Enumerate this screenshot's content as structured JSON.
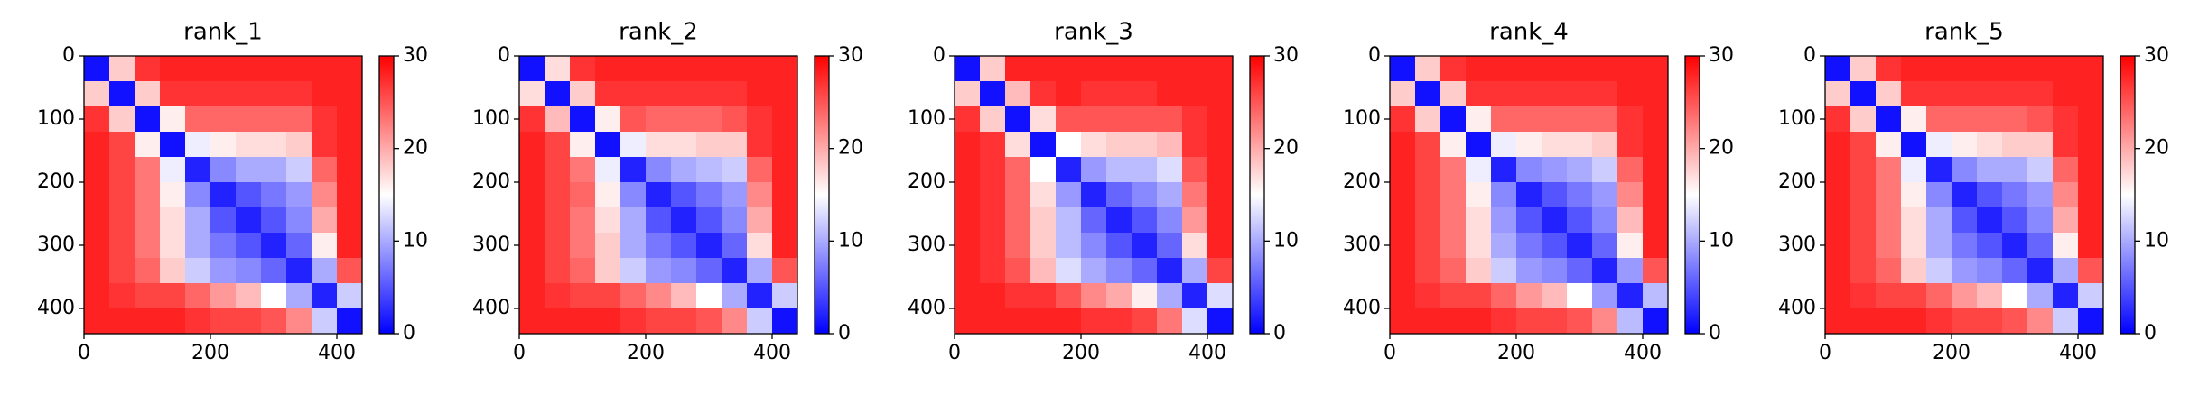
{
  "chart_data": [
    {
      "type": "heatmap",
      "title": "rank_1",
      "xlim": [
        0,
        440
      ],
      "ylim": [
        440,
        0
      ],
      "xticks": [
        0,
        200,
        400
      ],
      "yticks": [
        0,
        100,
        200,
        300,
        400
      ],
      "clim": [
        0,
        30
      ],
      "cticks": [
        0,
        10,
        20,
        30
      ],
      "colors": [
        "#0000ff",
        "#ffffff",
        "#ff0000"
      ],
      "values": [
        [
          1,
          18,
          27,
          28,
          28,
          28,
          28,
          28,
          28,
          28,
          28
        ],
        [
          18,
          1,
          18,
          27,
          27,
          27,
          27,
          27,
          27,
          28,
          28
        ],
        [
          27,
          18,
          1,
          16,
          24,
          24,
          24,
          24,
          24,
          27,
          28
        ],
        [
          28,
          26,
          16,
          1,
          14,
          16,
          17,
          17,
          18,
          27,
          28
        ],
        [
          28,
          26,
          23,
          14,
          2,
          8,
          10,
          10,
          12,
          24,
          28
        ],
        [
          28,
          26,
          23,
          16,
          8,
          2,
          5,
          7,
          9,
          22,
          28
        ],
        [
          28,
          26,
          23,
          17,
          10,
          5,
          2,
          5,
          8,
          20,
          28
        ],
        [
          28,
          26,
          23,
          17,
          10,
          7,
          5,
          2,
          6,
          16,
          28
        ],
        [
          28,
          26,
          24,
          18,
          12,
          9,
          8,
          6,
          2,
          10,
          25
        ],
        [
          28,
          27,
          26,
          26,
          24,
          21,
          19,
          15,
          10,
          2,
          12
        ],
        [
          28,
          28,
          28,
          28,
          27,
          26,
          26,
          25,
          22,
          12,
          1
        ]
      ]
    },
    {
      "type": "heatmap",
      "title": "rank_2",
      "xlim": [
        0,
        440
      ],
      "ylim": [
        440,
        0
      ],
      "xticks": [
        0,
        200,
        400
      ],
      "yticks": [
        0,
        100,
        200,
        300,
        400
      ],
      "clim": [
        0,
        30
      ],
      "cticks": [
        0,
        10,
        20,
        30
      ],
      "colors": [
        "#0000ff",
        "#ffffff",
        "#ff0000"
      ],
      "values": [
        [
          1,
          17,
          27,
          28,
          28,
          28,
          28,
          28,
          28,
          28,
          28
        ],
        [
          17,
          1,
          18,
          27,
          27,
          27,
          27,
          27,
          27,
          28,
          28
        ],
        [
          27,
          19,
          1,
          16,
          25,
          24,
          24,
          24,
          25,
          27,
          28
        ],
        [
          28,
          26,
          16,
          1,
          14,
          17,
          17,
          18,
          18,
          27,
          28
        ],
        [
          28,
          26,
          23,
          14,
          2,
          8,
          10,
          11,
          12,
          24,
          28
        ],
        [
          28,
          26,
          24,
          16,
          8,
          2,
          5,
          7,
          9,
          22,
          28
        ],
        [
          28,
          26,
          23,
          17,
          10,
          5,
          2,
          5,
          8,
          20,
          28
        ],
        [
          28,
          26,
          23,
          18,
          10,
          7,
          5,
          2,
          6,
          17,
          28
        ],
        [
          28,
          26,
          24,
          18,
          12,
          9,
          8,
          6,
          2,
          10,
          25
        ],
        [
          28,
          27,
          26,
          26,
          24,
          22,
          19,
          15,
          10,
          2,
          12
        ],
        [
          28,
          28,
          28,
          28,
          27,
          26,
          26,
          25,
          22,
          12,
          1
        ]
      ]
    },
    {
      "type": "heatmap",
      "title": "rank_3",
      "xlim": [
        0,
        440
      ],
      "ylim": [
        440,
        0
      ],
      "xticks": [
        0,
        200,
        400
      ],
      "yticks": [
        0,
        100,
        200,
        300,
        400
      ],
      "clim": [
        0,
        30
      ],
      "cticks": [
        0,
        10,
        20,
        30
      ],
      "colors": [
        "#0000ff",
        "#ffffff",
        "#ff0000"
      ],
      "values": [
        [
          1,
          18,
          28,
          28,
          28,
          28,
          28,
          28,
          28,
          28,
          28
        ],
        [
          18,
          1,
          19,
          27,
          28,
          27,
          27,
          27,
          28,
          28,
          28
        ],
        [
          27,
          18,
          1,
          17,
          25,
          25,
          25,
          25,
          25,
          27,
          28
        ],
        [
          28,
          27,
          17,
          1,
          15,
          17,
          18,
          18,
          19,
          27,
          28
        ],
        [
          28,
          27,
          24,
          15,
          2,
          9,
          11,
          11,
          13,
          25,
          28
        ],
        [
          28,
          27,
          24,
          17,
          9,
          2,
          6,
          8,
          10,
          23,
          28
        ],
        [
          28,
          27,
          24,
          18,
          11,
          6,
          2,
          5,
          8,
          21,
          28
        ],
        [
          28,
          27,
          24,
          18,
          11,
          8,
          5,
          2,
          6,
          17,
          28
        ],
        [
          28,
          27,
          25,
          19,
          13,
          10,
          8,
          6,
          2,
          10,
          26
        ],
        [
          28,
          28,
          27,
          27,
          25,
          22,
          20,
          16,
          10,
          2,
          13
        ],
        [
          28,
          28,
          28,
          28,
          28,
          27,
          27,
          26,
          23,
          13,
          1
        ]
      ]
    },
    {
      "type": "heatmap",
      "title": "rank_4",
      "xlim": [
        0,
        440
      ],
      "ylim": [
        440,
        0
      ],
      "xticks": [
        0,
        200,
        400
      ],
      "yticks": [
        0,
        100,
        200,
        300,
        400
      ],
      "clim": [
        0,
        30
      ],
      "cticks": [
        0,
        10,
        20,
        30
      ],
      "colors": [
        "#0000ff",
        "#ffffff",
        "#ff0000"
      ],
      "values": [
        [
          1,
          18,
          27,
          28,
          28,
          28,
          28,
          28,
          28,
          28,
          28
        ],
        [
          18,
          1,
          18,
          27,
          27,
          27,
          27,
          27,
          27,
          28,
          28
        ],
        [
          27,
          18,
          1,
          16,
          24,
          24,
          24,
          24,
          24,
          27,
          28
        ],
        [
          28,
          26,
          16,
          1,
          14,
          16,
          17,
          17,
          18,
          27,
          28
        ],
        [
          28,
          26,
          23,
          14,
          2,
          8,
          9,
          10,
          12,
          24,
          28
        ],
        [
          28,
          26,
          23,
          16,
          8,
          2,
          5,
          7,
          9,
          22,
          28
        ],
        [
          28,
          26,
          23,
          17,
          9,
          5,
          2,
          5,
          8,
          19,
          28
        ],
        [
          28,
          26,
          23,
          17,
          10,
          7,
          5,
          2,
          6,
          16,
          28
        ],
        [
          28,
          26,
          24,
          18,
          12,
          9,
          8,
          6,
          2,
          9,
          25
        ],
        [
          28,
          27,
          26,
          26,
          24,
          21,
          19,
          15,
          9,
          2,
          11
        ],
        [
          28,
          28,
          28,
          28,
          27,
          26,
          26,
          25,
          22,
          11,
          1
        ]
      ]
    },
    {
      "type": "heatmap",
      "title": "rank_5",
      "xlim": [
        0,
        440
      ],
      "ylim": [
        440,
        0
      ],
      "xticks": [
        0,
        200,
        400
      ],
      "yticks": [
        0,
        100,
        200,
        300,
        400
      ],
      "clim": [
        0,
        30
      ],
      "cticks": [
        0,
        10,
        20,
        30
      ],
      "colors": [
        "#0000ff",
        "#ffffff",
        "#ff0000"
      ],
      "values": [
        [
          1,
          18,
          27,
          28,
          28,
          28,
          28,
          28,
          28,
          28,
          28
        ],
        [
          18,
          1,
          18,
          27,
          27,
          27,
          27,
          27,
          27,
          28,
          28
        ],
        [
          27,
          18,
          1,
          16,
          24,
          24,
          24,
          24,
          25,
          27,
          28
        ],
        [
          28,
          26,
          16,
          1,
          14,
          16,
          17,
          18,
          18,
          27,
          28
        ],
        [
          28,
          26,
          23,
          14,
          2,
          8,
          10,
          10,
          12,
          24,
          28
        ],
        [
          28,
          26,
          23,
          16,
          8,
          2,
          5,
          7,
          9,
          22,
          28
        ],
        [
          28,
          26,
          23,
          17,
          10,
          5,
          2,
          5,
          8,
          20,
          28
        ],
        [
          28,
          26,
          23,
          17,
          10,
          7,
          5,
          2,
          6,
          16,
          28
        ],
        [
          28,
          26,
          24,
          18,
          12,
          9,
          8,
          6,
          2,
          10,
          25
        ],
        [
          28,
          27,
          26,
          26,
          24,
          21,
          19,
          15,
          10,
          2,
          12
        ],
        [
          28,
          28,
          28,
          28,
          27,
          26,
          26,
          25,
          22,
          12,
          1
        ]
      ]
    }
  ]
}
